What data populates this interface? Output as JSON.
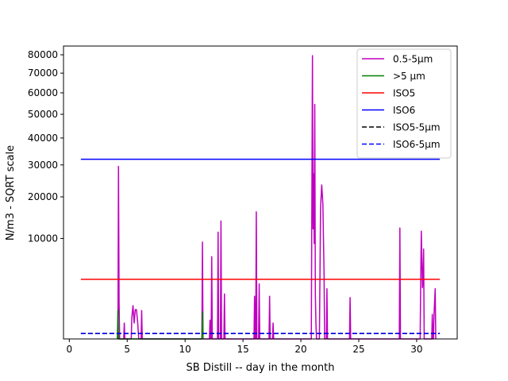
{
  "chart_data": {
    "type": "line",
    "title": "",
    "xlabel": "SB Distill -- day in the month",
    "ylabel": "N/m3 - SQRT scale",
    "y_scale": "sqrt",
    "xlim": [
      -0.5,
      33.5
    ],
    "ylim": [
      0,
      85000
    ],
    "grid": false,
    "legend_position": "top-right",
    "x_ticks": [
      0,
      5,
      10,
      15,
      20,
      25,
      30
    ],
    "x_tick_labels": [
      "0",
      "5",
      "10",
      "15",
      "20",
      "25",
      "30"
    ],
    "y_ticks": [
      10000,
      20000,
      30000,
      40000,
      50000,
      60000,
      70000,
      80000
    ],
    "y_tick_labels": [
      "10000",
      "20000",
      "30000",
      "40000",
      "50000",
      "60000",
      "70000",
      "80000"
    ],
    "series": [
      {
        "name": "0.5-5µm",
        "color": "#bf00bf",
        "dash": "solid",
        "points": [
          [
            4.2,
            0
          ],
          [
            4.25,
            29500
          ],
          [
            4.3,
            1400
          ],
          [
            4.35,
            0
          ],
          [
            4.7,
            0
          ],
          [
            4.75,
            250
          ],
          [
            4.8,
            0
          ],
          [
            5.35,
            0
          ],
          [
            5.4,
            450
          ],
          [
            5.5,
            1100
          ],
          [
            5.6,
            250
          ],
          [
            5.7,
            850
          ],
          [
            5.8,
            850
          ],
          [
            5.9,
            300
          ],
          [
            6.0,
            0
          ],
          [
            6.2,
            0
          ],
          [
            6.25,
            800
          ],
          [
            6.3,
            0
          ],
          [
            11.45,
            0
          ],
          [
            11.5,
            9300
          ],
          [
            11.55,
            0
          ],
          [
            12.1,
            0
          ],
          [
            12.15,
            350
          ],
          [
            12.2,
            0
          ],
          [
            12.25,
            0
          ],
          [
            12.3,
            6700
          ],
          [
            12.35,
            0
          ],
          [
            12.8,
            0
          ],
          [
            12.85,
            11300
          ],
          [
            12.9,
            0
          ],
          [
            13.05,
            0
          ],
          [
            13.1,
            13800
          ],
          [
            13.15,
            0
          ],
          [
            13.35,
            0
          ],
          [
            13.4,
            2000
          ],
          [
            13.45,
            0
          ],
          [
            15.95,
            0
          ],
          [
            16.0,
            1800
          ],
          [
            16.05,
            0
          ],
          [
            16.1,
            0
          ],
          [
            16.15,
            16000
          ],
          [
            16.2,
            0
          ],
          [
            16.35,
            0
          ],
          [
            16.4,
            3000
          ],
          [
            16.45,
            0
          ],
          [
            17.25,
            0
          ],
          [
            17.3,
            1800
          ],
          [
            17.35,
            0
          ],
          [
            17.55,
            0
          ],
          [
            17.6,
            250
          ],
          [
            17.65,
            0
          ],
          [
            20.9,
            0
          ],
          [
            21.0,
            79500
          ],
          [
            21.05,
            12000
          ],
          [
            21.1,
            27000
          ],
          [
            21.15,
            9000
          ],
          [
            21.2,
            54500
          ],
          [
            21.25,
            2000
          ],
          [
            21.3,
            250
          ],
          [
            21.35,
            0
          ],
          [
            21.6,
            0
          ],
          [
            21.7,
            17000
          ],
          [
            21.8,
            23500
          ],
          [
            21.9,
            18000
          ],
          [
            22.0,
            4500
          ],
          [
            22.05,
            0
          ],
          [
            22.2,
            0
          ],
          [
            22.25,
            2500
          ],
          [
            22.3,
            0
          ],
          [
            24.2,
            0
          ],
          [
            24.25,
            1700
          ],
          [
            24.3,
            0
          ],
          [
            28.5,
            0
          ],
          [
            28.55,
            12200
          ],
          [
            28.6,
            0
          ],
          [
            30.3,
            0
          ],
          [
            30.35,
            3600
          ],
          [
            30.4,
            11500
          ],
          [
            30.5,
            2600
          ],
          [
            30.55,
            3400
          ],
          [
            30.6,
            8000
          ],
          [
            30.65,
            0
          ],
          [
            31.3,
            0
          ],
          [
            31.35,
            600
          ],
          [
            31.4,
            0
          ],
          [
            31.45,
            0
          ],
          [
            31.5,
            600
          ],
          [
            31.6,
            2500
          ],
          [
            31.65,
            0
          ]
        ]
      },
      {
        "name": ">5 µm",
        "color": "#008000",
        "dash": "solid",
        "points": [
          [
            4.15,
            0
          ],
          [
            4.2,
            830
          ],
          [
            4.25,
            0
          ],
          [
            11.45,
            0
          ],
          [
            11.5,
            730
          ],
          [
            11.55,
            0
          ]
        ]
      },
      {
        "name": "ISO5",
        "color": "#ff0000",
        "dash": "solid",
        "points": [
          [
            1,
            3520
          ],
          [
            32,
            3520
          ]
        ]
      },
      {
        "name": "ISO6",
        "color": "#0000ff",
        "dash": "solid",
        "points": [
          [
            1,
            32000
          ],
          [
            32,
            32000
          ]
        ]
      },
      {
        "name": "ISO5-5µm",
        "color": "#000000",
        "dash": "dashed",
        "points": [
          [
            1,
            29
          ],
          [
            32,
            29
          ]
        ]
      },
      {
        "name": "ISO6-5µm",
        "color": "#0000ff",
        "dash": "dashed",
        "points": [
          [
            1,
            29
          ],
          [
            32,
            29
          ]
        ]
      }
    ]
  }
}
